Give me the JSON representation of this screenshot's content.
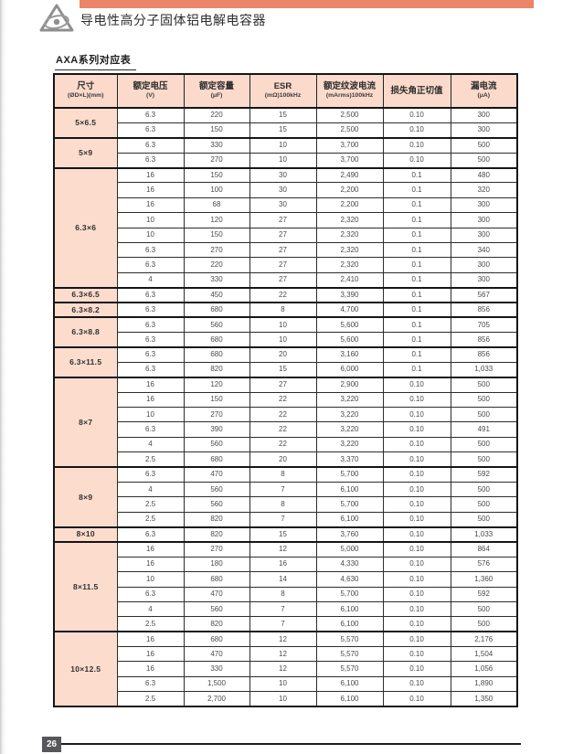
{
  "page": {
    "title": "导电性高分子固体铝电解电容器",
    "section_title": "AXA系列对应表",
    "page_number": "26"
  },
  "colors": {
    "accent_bar": "#EC8568",
    "table_header_bg": "#FBDACB",
    "size_cell_bg": "#FCDCCD",
    "footer_badge_bg": "#57575A"
  },
  "table": {
    "columns": [
      {
        "label": "尺寸",
        "unit": "(ØD×L)(mm)"
      },
      {
        "label": "额定电压",
        "unit": "(V)"
      },
      {
        "label": "额定容量",
        "unit": "(μF)"
      },
      {
        "label": "ESR",
        "unit": "(mΩ)100kHz"
      },
      {
        "label": "额定纹波电流",
        "unit": "(mArms)100kHz"
      },
      {
        "label": "损失角正切值",
        "unit": ""
      },
      {
        "label": "漏电流",
        "unit": "(μA)"
      }
    ],
    "groups": [
      {
        "size": "5×6.5",
        "rows": [
          [
            "6.3",
            "220",
            "15",
            "2,500",
            "0.10",
            "300"
          ],
          [
            "6.3",
            "150",
            "15",
            "2,500",
            "0.10",
            "300"
          ]
        ]
      },
      {
        "size": "5×9",
        "rows": [
          [
            "6.3",
            "330",
            "10",
            "3,700",
            "0.10",
            "500"
          ],
          [
            "6.3",
            "270",
            "10",
            "3,700",
            "0.10",
            "500"
          ]
        ]
      },
      {
        "size": "6.3×6",
        "rows": [
          [
            "16",
            "150",
            "30",
            "2,490",
            "0.1",
            "480"
          ],
          [
            "16",
            "100",
            "30",
            "2,200",
            "0.1",
            "320"
          ],
          [
            "16",
            "68",
            "30",
            "2,200",
            "0.1",
            "300"
          ],
          [
            "10",
            "120",
            "27",
            "2,320",
            "0.1",
            "300"
          ],
          [
            "10",
            "150",
            "27",
            "2,320",
            "0.1",
            "300"
          ],
          [
            "6.3",
            "270",
            "27",
            "2,320",
            "0.1",
            "340"
          ],
          [
            "6.3",
            "220",
            "27",
            "2,320",
            "0.1",
            "300"
          ],
          [
            "4",
            "330",
            "27",
            "2,410",
            "0.1",
            "300"
          ]
        ]
      },
      {
        "size": "6.3×6.5",
        "rows": [
          [
            "6.3",
            "450",
            "22",
            "3,390",
            "0.1",
            "567"
          ]
        ]
      },
      {
        "size": "6.3×8.2",
        "rows": [
          [
            "6.3",
            "680",
            "8",
            "4,700",
            "0.1",
            "856"
          ]
        ]
      },
      {
        "size": "6.3×8.8",
        "rows": [
          [
            "6.3",
            "560",
            "10",
            "5,600",
            "0.1",
            "705"
          ],
          [
            "6.3",
            "680",
            "10",
            "5,600",
            "0.1",
            "856"
          ]
        ]
      },
      {
        "size": "6.3×11.5",
        "rows": [
          [
            "6.3",
            "680",
            "20",
            "3,160",
            "0.1",
            "856"
          ],
          [
            "6.3",
            "820",
            "15",
            "6,000",
            "0.1",
            "1,033"
          ]
        ]
      },
      {
        "size": "8×7",
        "rows": [
          [
            "16",
            "120",
            "27",
            "2,900",
            "0.10",
            "500"
          ],
          [
            "16",
            "150",
            "22",
            "3,220",
            "0.10",
            "500"
          ],
          [
            "10",
            "270",
            "22",
            "3,220",
            "0.10",
            "500"
          ],
          [
            "6.3",
            "390",
            "22",
            "3,220",
            "0.10",
            "491"
          ],
          [
            "4",
            "560",
            "22",
            "3,220",
            "0.10",
            "500"
          ],
          [
            "2.5",
            "680",
            "20",
            "3,370",
            "0.10",
            "500"
          ]
        ]
      },
      {
        "size": "8×9",
        "rows": [
          [
            "6.3",
            "470",
            "8",
            "5,700",
            "0.10",
            "592"
          ],
          [
            "4",
            "560",
            "7",
            "6,100",
            "0.10",
            "500"
          ],
          [
            "2.5",
            "560",
            "8",
            "5,700",
            "0.10",
            "500"
          ],
          [
            "2.5",
            "820",
            "7",
            "6,100",
            "0.10",
            "500"
          ]
        ]
      },
      {
        "size": "8×10",
        "rows": [
          [
            "6.3",
            "820",
            "15",
            "3,760",
            "0.10",
            "1,033"
          ]
        ]
      },
      {
        "size": "8×11.5",
        "rows": [
          [
            "16",
            "270",
            "12",
            "5,000",
            "0.10",
            "864"
          ],
          [
            "16",
            "180",
            "16",
            "4,330",
            "0.10",
            "576"
          ],
          [
            "10",
            "680",
            "14",
            "4,630",
            "0.10",
            "1,360"
          ],
          [
            "6.3",
            "470",
            "8",
            "5,700",
            "0.10",
            "592"
          ],
          [
            "4",
            "560",
            "7",
            "6,100",
            "0.10",
            "500"
          ],
          [
            "2.5",
            "820",
            "7",
            "6,100",
            "0.10",
            "500"
          ]
        ]
      },
      {
        "size": "10×12.5",
        "rows": [
          [
            "16",
            "680",
            "12",
            "5,570",
            "0.10",
            "2,176"
          ],
          [
            "16",
            "470",
            "12",
            "5,570",
            "0.10",
            "1,504"
          ],
          [
            "16",
            "330",
            "12",
            "5,570",
            "0.10",
            "1,056"
          ],
          [
            "6.3",
            "1,500",
            "10",
            "6,100",
            "0.10",
            "1,890"
          ],
          [
            "2.5",
            "2,700",
            "10",
            "6,100",
            "0.10",
            "1,350"
          ]
        ]
      }
    ]
  }
}
